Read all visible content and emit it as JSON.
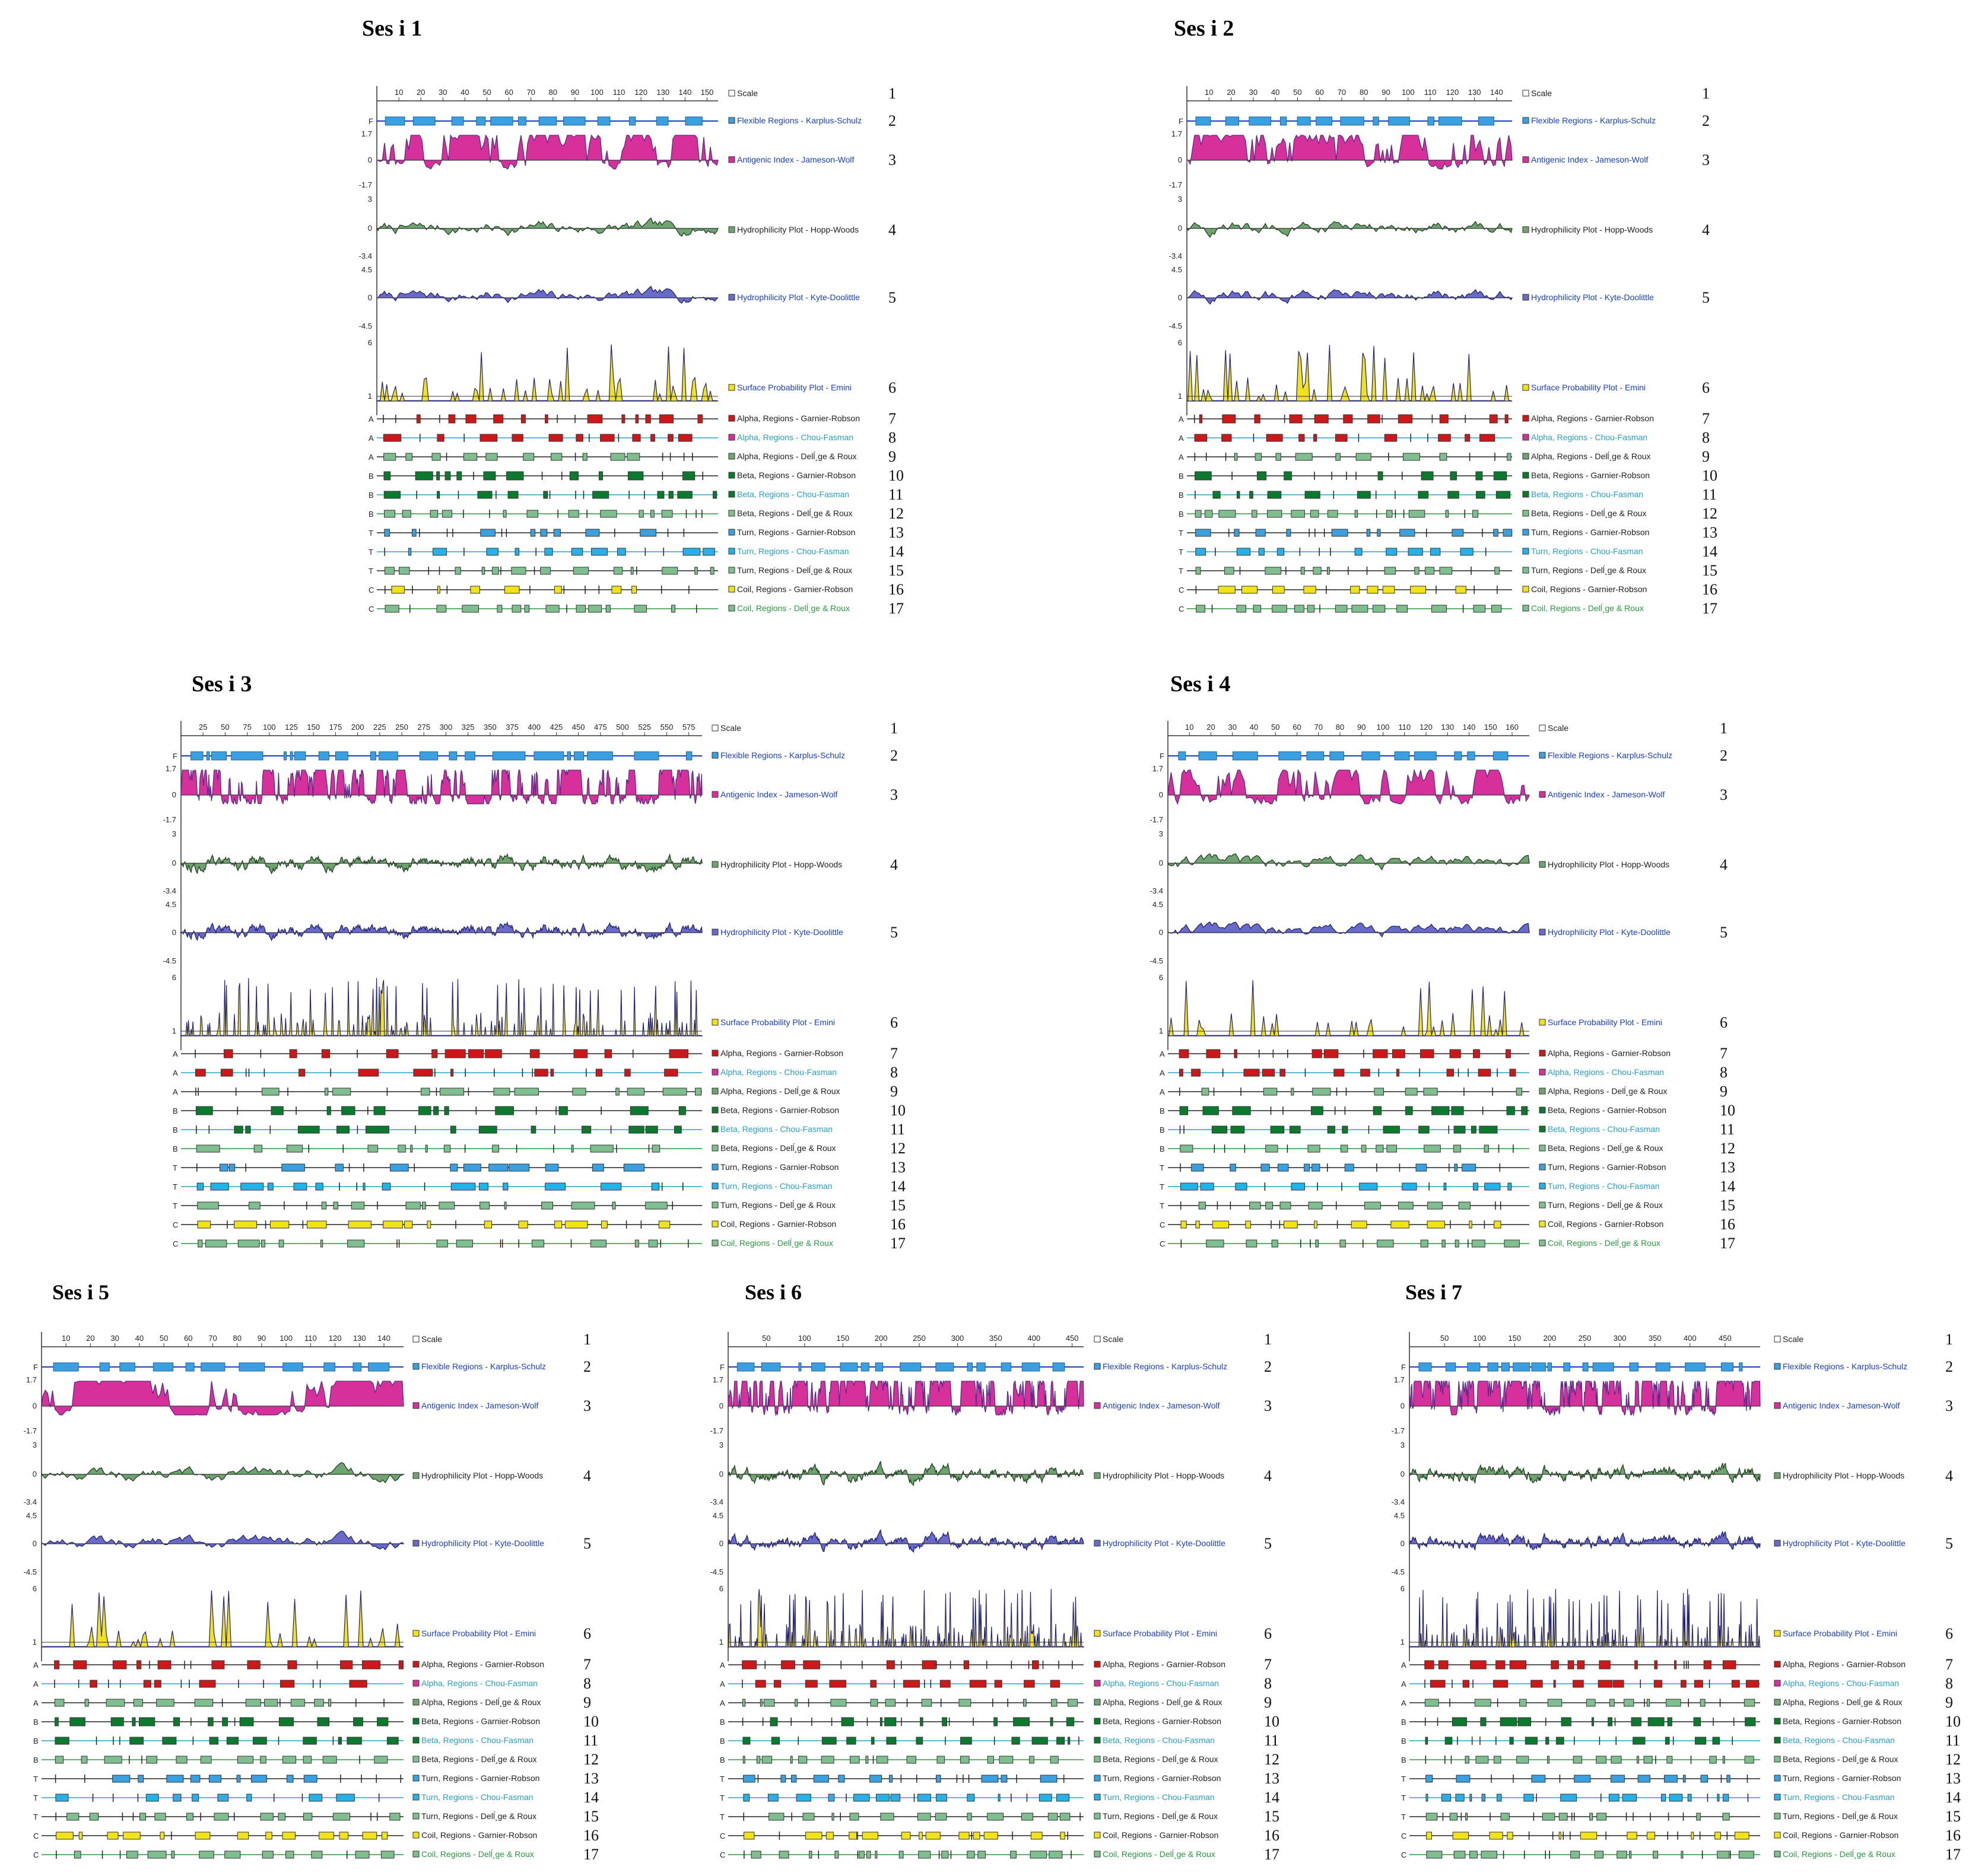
{
  "figure": {
    "title_prefix": "Ses i",
    "row_numbers": [
      "1",
      "2",
      "3",
      "4",
      "5",
      "6",
      "7",
      "8",
      "9",
      "10",
      "11",
      "12",
      "13",
      "14",
      "15",
      "16",
      "17"
    ],
    "track_labels": [
      "Scale",
      "Flexible Regions - Karplus-Schulz",
      "Antigenic Index - Jameson-Wolf",
      "Hydrophilicity Plot - Hopp-Woods",
      "Hydrophilicity Plot - Kyte-Doolittle",
      "Surface Probability Plot - Emini",
      "Alpha, Regions - Garnier-Robson",
      "Alpha, Regions - Chou-Fasman",
      "Alpha, Regions - Delĺ¸ge & Roux",
      "Beta, Regions - Garnier-Robson",
      "Beta, Regions - Chou-Fasman",
      "Beta, Regions - Delĺ¸ge & Roux",
      "Turn, Regions - Garnier-Robson",
      "Turn, Regions - Chou-Fasman",
      "Turn, Regions - Delĺ¸ge & Roux",
      "Coil, Regions - Garnier-Robson",
      "Coil, Regions - Delĺ¸ge & Roux"
    ],
    "row_letters": [
      "F",
      "A",
      "A",
      "A",
      "B",
      "B",
      "B",
      "T",
      "T",
      "T",
      "C",
      "C"
    ],
    "axis_values": {
      "antigenic": [
        "1.7",
        "0",
        "-1.7"
      ],
      "hopp": [
        "3",
        "0",
        "-3.4"
      ],
      "kyte": [
        "4.5",
        "0",
        "-4.5"
      ],
      "emini": [
        "6",
        "1"
      ]
    },
    "colors": {
      "flex": "#3aa0e0",
      "antigenic": "#d8309a",
      "hopp": "#6fa36f",
      "kyte": "#6a6ac8",
      "emini": "#f2e21a",
      "alpha": "#cc1818",
      "beta": "#0b7a2e",
      "beta_light": "#7fbf8f",
      "turn": "#28b0e8",
      "coil": "#f2e21a",
      "coil_light": "#7fbf8f",
      "label_blue": "#1a3fbf",
      "label_cyan": "#28a0c8",
      "label_green": "#2a9a40"
    }
  },
  "chart_data": [
    {
      "type": "line",
      "title": "Ses i 1",
      "length": 155,
      "ticks": [
        10,
        20,
        30,
        40,
        50,
        60,
        70,
        80,
        90,
        100,
        110,
        120,
        130,
        140,
        150
      ]
    },
    {
      "type": "line",
      "title": "Ses i 2",
      "length": 147,
      "ticks": [
        10,
        20,
        30,
        40,
        50,
        60,
        70,
        80,
        90,
        100,
        110,
        120,
        130,
        140
      ]
    },
    {
      "type": "line",
      "title": "Ses i 3",
      "length": 590,
      "ticks": [
        25,
        50,
        75,
        100,
        125,
        150,
        175,
        200,
        225,
        250,
        275,
        300,
        325,
        350,
        375,
        400,
        425,
        450,
        475,
        500,
        525,
        550,
        575
      ]
    },
    {
      "type": "line",
      "title": "Ses i 4",
      "length": 168,
      "ticks": [
        10,
        20,
        30,
        40,
        50,
        60,
        70,
        80,
        90,
        100,
        110,
        120,
        130,
        140,
        150,
        160
      ]
    },
    {
      "type": "line",
      "title": "Ses i 5",
      "length": 148,
      "ticks": [
        10,
        20,
        30,
        40,
        50,
        60,
        70,
        80,
        90,
        100,
        110,
        120,
        130,
        140
      ]
    },
    {
      "type": "line",
      "title": "Ses i 6",
      "length": 465,
      "ticks": [
        50,
        100,
        150,
        200,
        250,
        300,
        350,
        400,
        450
      ]
    },
    {
      "type": "line",
      "title": "Ses i 7",
      "length": 500,
      "ticks": [
        50,
        100,
        150,
        200,
        250,
        300,
        350,
        400,
        450
      ]
    }
  ]
}
